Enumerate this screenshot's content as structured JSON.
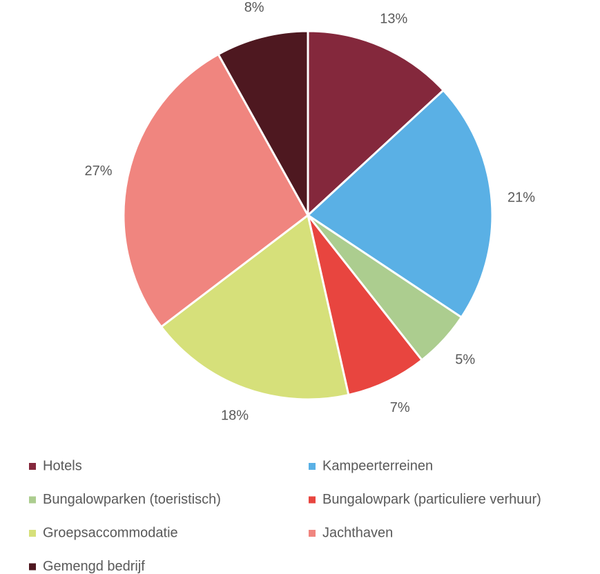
{
  "chart_data": {
    "type": "pie",
    "categories": [
      "Hotels",
      "Kampeerterreinen",
      "Bungalowparken (toeristisch)",
      "Bungalowpark (particuliere verhuur)",
      "Groepsaccommodatie",
      "Jachthaven",
      "Gemengd bedrijf"
    ],
    "values": [
      13,
      21,
      5,
      7,
      18,
      27,
      8
    ],
    "value_labels": [
      "13%",
      "21%",
      "5%",
      "7%",
      "18%",
      "27%",
      "8%"
    ],
    "colors": [
      "#84283c",
      "#5ab0e5",
      "#accd8f",
      "#e8453f",
      "#d6e07a",
      "#f0857f",
      "#4e1820"
    ]
  }
}
